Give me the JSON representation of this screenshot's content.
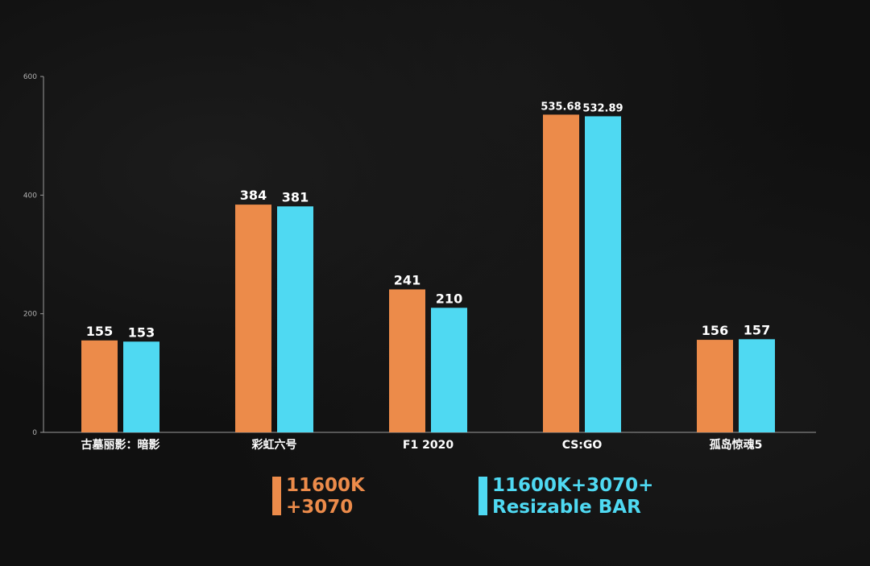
{
  "chart_data": {
    "type": "bar",
    "categories": [
      "古墓丽影：暗影",
      "彩虹六号",
      "F1 2020",
      "CS:GO",
      "孤岛惊魂5"
    ],
    "series": [
      {
        "name": "11600K\n+3070",
        "values": [
          155,
          384,
          241,
          535.68,
          156
        ],
        "value_labels": [
          "155",
          "384",
          "241",
          "535.68",
          "156"
        ],
        "color": "#ec8b4a"
      },
      {
        "name": "11600K+3070+\nResizable BAR",
        "values": [
          153,
          381,
          210,
          532.89,
          157
        ],
        "value_labels": [
          "153",
          "381",
          "210",
          "532.89",
          "157"
        ],
        "color": "#4fd9f2"
      }
    ],
    "y_ticks": [
      "0",
      "200",
      "400",
      "600"
    ],
    "ylim": [
      0,
      600
    ],
    "grid": false,
    "legend_position": "bottom",
    "colors": {
      "axis": "#9a9a9a",
      "tick_text": "#b0b0b0",
      "value_text": "#ffffff",
      "category_text": "#ffffff"
    }
  }
}
